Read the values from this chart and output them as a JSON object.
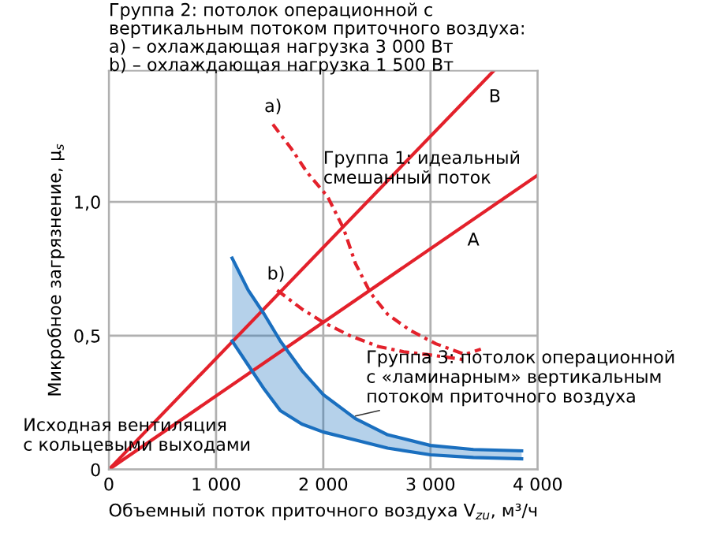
{
  "chart_data": {
    "type": "line",
    "title": "Группа 2: потолок операционной с\nвертикальным потоком приточного воздуха:\na) – охлаждающая нагрузка 3 000 Вт\nb) – охлаждающая нагрузка 1 500 Вт",
    "xlabel": "Объемный поток приточного воздуха V$_{zu}$, м³/ч",
    "ylabel": "Микробное загрязнение, μ$_{s}$",
    "xlim": [
      0,
      4000
    ],
    "ylim": [
      0,
      1.49
    ],
    "xticks": [
      0,
      {
        "value": 1000,
        "label": "1 000"
      },
      {
        "value": 2000,
        "label": "2 000"
      },
      {
        "value": 3000,
        "label": "3 000"
      },
      {
        "value": 4000,
        "label": "4 000"
      }
    ],
    "yticks": [
      0,
      {
        "value": 0.5,
        "label": "0,5"
      },
      {
        "value": 1.0,
        "label": "1,0"
      }
    ],
    "grid": true,
    "legend": false,
    "series": [
      {
        "color": "#e3212b",
        "line_style": "solid",
        "x": [
          0,
          3590
        ],
        "values": [
          0,
          1.49
        ]
      },
      {
        "color": "#e3212b",
        "line_style": "solid",
        "x": [
          0,
          4000
        ],
        "values": [
          0,
          1.1
        ]
      },
      {
        "color": "#e3212b",
        "line_style": "dashed",
        "x": [
          1530,
          1700,
          1850,
          2040,
          2190,
          2300,
          2440,
          2600,
          2810,
          3050,
          3320,
          3470
        ],
        "values": [
          1.29,
          1.2,
          1.11,
          1.02,
          0.9,
          0.77,
          0.66,
          0.58,
          0.52,
          0.47,
          0.43,
          0.45
        ]
      },
      {
        "color": "#e3212b",
        "line_style": "dashed",
        "x": [
          1570,
          1800,
          2000,
          2250,
          2510,
          2750,
          2960,
          3150,
          3320
        ],
        "values": [
          0.67,
          0.6,
          0.55,
          0.5,
          0.46,
          0.44,
          0.43,
          0.42,
          0.41
        ]
      },
      {
        "color": "#1a6fbf",
        "line_style": "solid",
        "x": [
          1150,
          1300,
          1450,
          1600,
          1800,
          2000,
          2300,
          2600,
          3000,
          3400,
          3850
        ],
        "values": [
          0.48,
          0.39,
          0.3,
          0.22,
          0.17,
          0.14,
          0.11,
          0.08,
          0.055,
          0.045,
          0.04
        ]
      },
      {
        "type": "area",
        "color": "#1a6fbf",
        "x": [
          1150,
          1300,
          1450,
          1600,
          1800,
          2000,
          2300,
          2600,
          3000,
          3400,
          3850
        ],
        "values": [
          0.79,
          0.67,
          0.58,
          0.48,
          0.37,
          0.28,
          0.19,
          0.13,
          0.09,
          0.075,
          0.07
        ]
      }
    ],
    "annotations": [
      "B",
      "A",
      "a)",
      "b)",
      "Группа 1: идеальный\nсмешанный поток",
      "Группа 3: потолок операционной\nс «ламинарным» вертикальным\nпотоком приточного воздуха",
      "Исходная вентиляция\nс кольцевыми выходами"
    ]
  }
}
